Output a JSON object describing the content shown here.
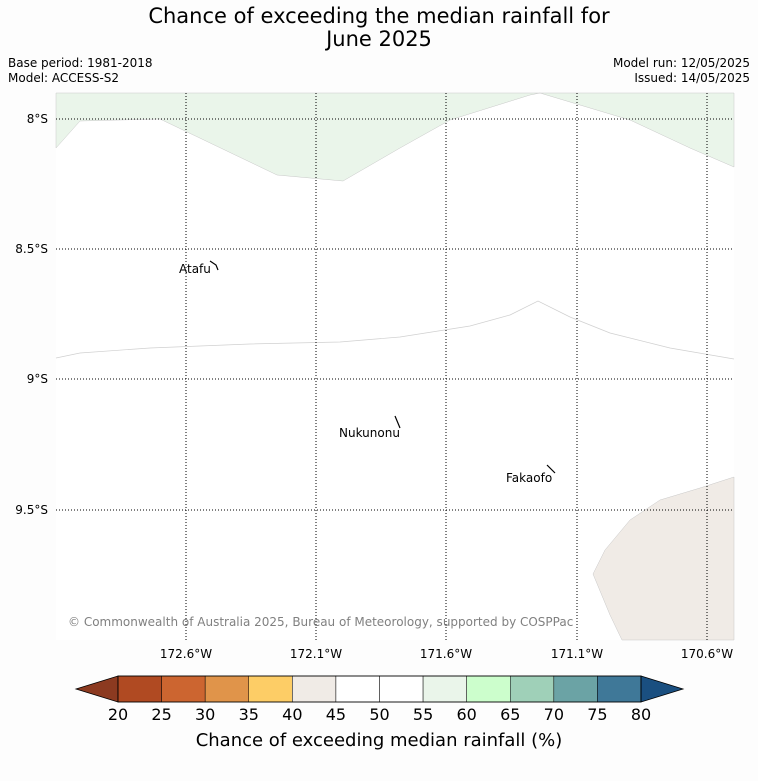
{
  "title_line1": "Chance of exceeding the median rainfall for",
  "title_line2": "June 2025",
  "base_period": "Base period: 1981-2018",
  "model": "Model: ACCESS-S2",
  "model_run": "Model run: 12/05/2025",
  "issued": "Issued: 14/05/2025",
  "copyright": "© Commonwealth of Australia 2025, Bureau of Meteorology, supported by COSPPac",
  "map": {
    "lat_labels": [
      "8°S",
      "8.5°S",
      "9°S",
      "9.5°S"
    ],
    "lon_labels": [
      "172.6°W",
      "172.1°W",
      "171.6°W",
      "171.1°W",
      "170.6°W"
    ],
    "places": [
      "Atafu",
      "Nukunonu",
      "Fakaofo"
    ]
  },
  "colorbar": {
    "label": "Chance of exceeding median rainfall (%)",
    "ticks": [
      "20",
      "25",
      "30",
      "35",
      "40",
      "45",
      "50",
      "55",
      "60",
      "65",
      "70",
      "75",
      "80"
    ],
    "low_extend_color": "#8c3a20",
    "high_extend_color": "#1a4f80",
    "colors": [
      "#b04a22",
      "#cc6530",
      "#e0944a",
      "#fdcd66",
      "#f0ebe6",
      "#ffffff",
      "#ffffff",
      "#eaf5ea",
      "#ccfecc",
      "#9fd0b8",
      "#6ba3a5",
      "#3f7898"
    ]
  },
  "shading_colors": {
    "above": "#eaf5ea",
    "below": "#f0ebe6"
  }
}
